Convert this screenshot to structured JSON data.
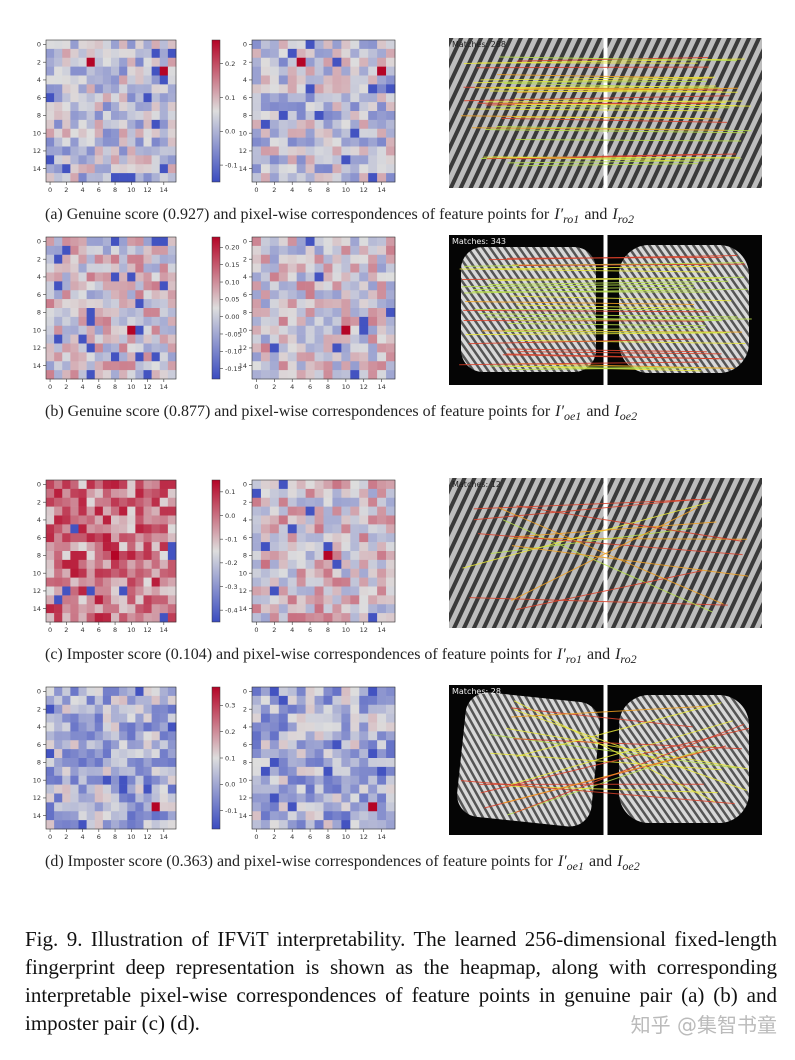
{
  "axis_ticks": [
    0,
    2,
    4,
    6,
    8,
    10,
    12,
    14
  ],
  "conjunction": "and",
  "panels": [
    {
      "caption": "(a)  Genuine score (0.927) and pixel-wise correspondences of feature points for",
      "first_symbol": {
        "base": "I′",
        "sub": "ro1"
      },
      "second_symbol": {
        "base": "I",
        "sub": "ro2"
      },
      "colorbar_range": [
        -0.15,
        0.27
      ],
      "colorbar_ticks": [
        0.2,
        0.1,
        {
          "value": 0,
          "label": "0.0"
        },
        -0.1
      ],
      "matches_label": "Matches: 288"
    },
    {
      "caption": "(b) Genuine score (0.877) and pixel-wise correspondences of feature points for",
      "first_symbol": {
        "base": "I′",
        "sub": "oe1"
      },
      "second_symbol": {
        "base": "I",
        "sub": "oe2"
      },
      "colorbar_range": [
        -0.18,
        0.23
      ],
      "colorbar_ticks": [
        {
          "value": 0.2,
          "label": "0.20"
        },
        0.15,
        {
          "value": 0.1,
          "label": "0.10"
        },
        0.05,
        {
          "value": 0,
          "label": "0.00"
        },
        -0.05,
        {
          "value": -0.1,
          "label": "-0.10"
        },
        -0.15
      ],
      "matches_label": "Matches: 343"
    },
    {
      "caption": "(c)  Imposter score (0.104) and pixel-wise correspondences of feature points for",
      "first_symbol": {
        "base": "I′",
        "sub": "ro1"
      },
      "second_symbol": {
        "base": "I",
        "sub": "ro2"
      },
      "colorbar_range": [
        -0.45,
        0.15
      ],
      "colorbar_ticks": [
        0.1,
        {
          "value": 0,
          "label": "0.0"
        },
        -0.1,
        -0.2,
        -0.3,
        -0.4
      ],
      "matches_label": "Matches: 12"
    },
    {
      "caption": "(d)  Imposter score (0.363) and  pixel-wise correspondences of feature points for",
      "first_symbol": {
        "base": "I′",
        "sub": "oe1"
      },
      "second_symbol": {
        "base": "I",
        "sub": "oe2"
      },
      "colorbar_range": [
        -0.17,
        0.37
      ],
      "colorbar_ticks": [
        0.3,
        0.2,
        0.1,
        {
          "value": 0,
          "label": "0.0"
        },
        -0.1
      ],
      "matches_label": "Matches: 28"
    }
  ],
  "figure_caption": "Fig. 9.    Illustration of IFViT interpretability. The learned 256-dimensional fixed-length fingerprint deep representation is shown as the heapmap, along with corresponding interpretable pixel-wise correspondences of feature points in genuine pair (a) (b) and imposter pair (c) (d).",
  "watermark": "知乎 @集智书童"
}
